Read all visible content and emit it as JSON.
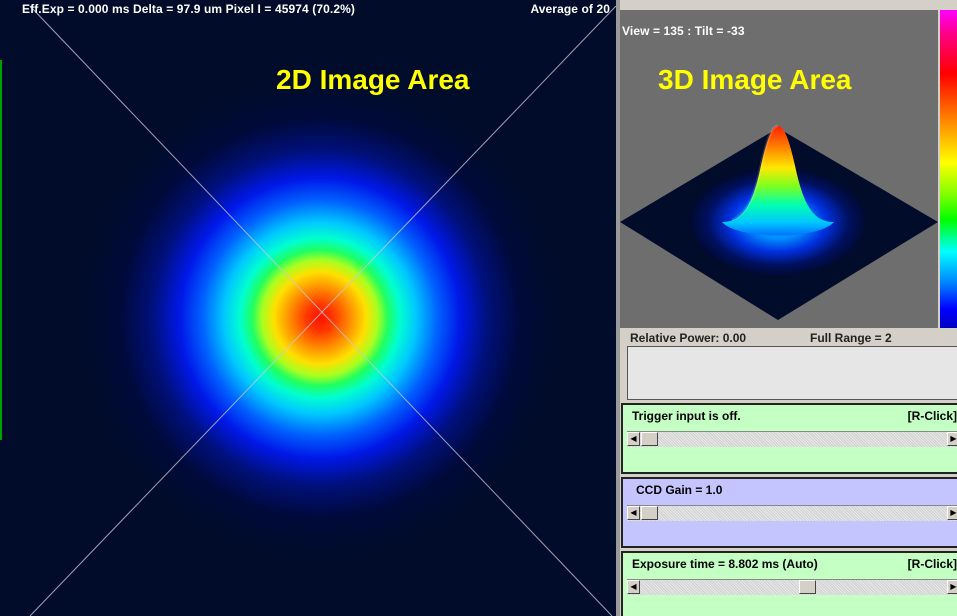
{
  "colors": {
    "green_panel": "#c4ffc4",
    "blue_panel": "#c4c4ff",
    "label_yellow": "#ffff00"
  },
  "view2d": {
    "status_left": "Eff.Exp = 0.000 ms  Delta = 97.9 um Pixel I = 45974 (70.2%)",
    "status_right": "Average of 20",
    "area_label": "2D Image Area"
  },
  "view3d": {
    "view_text": "View = 135 : Tilt = -33",
    "area_label": "3D Image Area"
  },
  "status": {
    "relative_power": "Relative Power: 0.00",
    "full_range": "Full Range = 2"
  },
  "controls": {
    "trigger": {
      "label": "Trigger input is off.",
      "rclick": "[R-Click]",
      "slider_fraction": 0.0
    },
    "gain": {
      "label": "CCD Gain = 1.0",
      "slider_fraction": 0.0
    },
    "exposure": {
      "label": "Exposure time = 8.802 ms (Auto)",
      "rclick": "[R-Click]",
      "slider_fraction": 0.55
    }
  }
}
